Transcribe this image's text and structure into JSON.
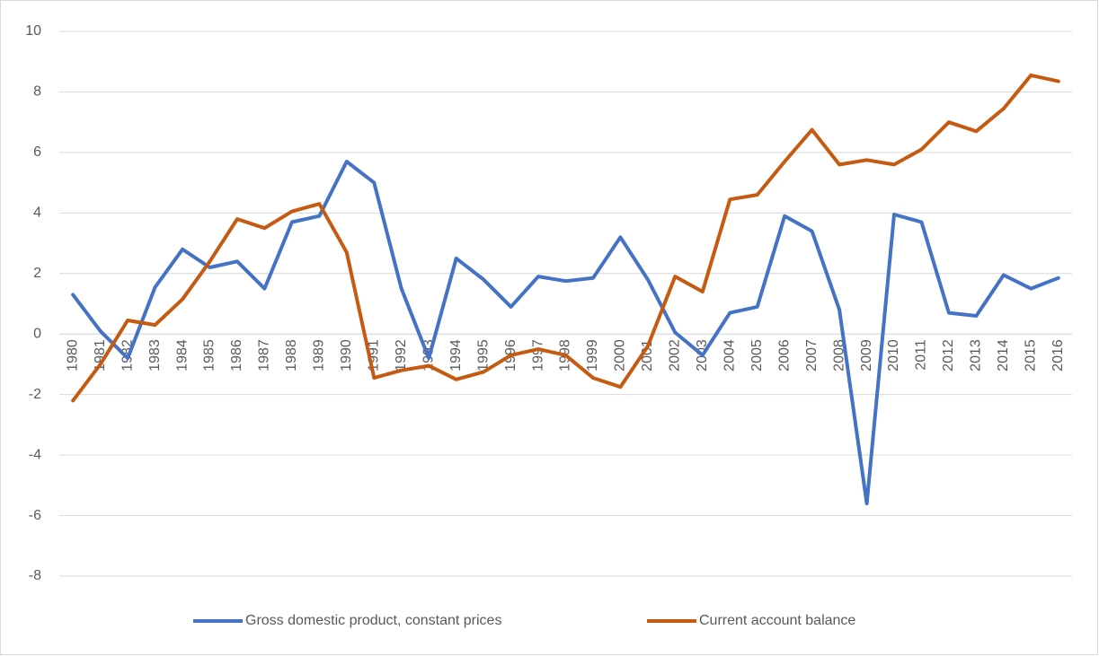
{
  "chart_data": {
    "type": "line",
    "categories": [
      "1980",
      "1981",
      "1982",
      "1983",
      "1984",
      "1985",
      "1986",
      "1987",
      "1988",
      "1989",
      "1990",
      "1991",
      "1992",
      "1993",
      "1994",
      "1995",
      "1996",
      "1997",
      "1998",
      "1999",
      "2000",
      "2001",
      "2002",
      "2003",
      "2004",
      "2005",
      "2006",
      "2007",
      "2008",
      "2009",
      "2010",
      "2011",
      "2012",
      "2013",
      "2014",
      "2015",
      "2016"
    ],
    "series": [
      {
        "name": "Gross domestic product, constant prices",
        "color": "#4472c4",
        "values": [
          1.3,
          0.1,
          -0.8,
          1.55,
          2.8,
          2.2,
          2.4,
          1.5,
          3.7,
          3.9,
          5.7,
          5.0,
          1.5,
          -0.8,
          2.5,
          1.8,
          0.9,
          1.9,
          1.75,
          1.85,
          3.2,
          1.8,
          0.05,
          -0.7,
          0.7,
          0.9,
          3.9,
          3.4,
          0.8,
          -5.6,
          3.95,
          3.7,
          0.7,
          0.6,
          1.95,
          1.5,
          1.85
        ]
      },
      {
        "name": "Current account balance",
        "color": "#c55a11",
        "values": [
          -2.2,
          -1.0,
          0.45,
          0.3,
          1.15,
          2.4,
          3.8,
          3.5,
          4.05,
          4.3,
          2.7,
          -1.45,
          -1.2,
          -1.05,
          -1.5,
          -1.25,
          -0.7,
          -0.5,
          -0.7,
          -1.45,
          -1.75,
          -0.4,
          1.9,
          1.4,
          4.45,
          4.6,
          5.7,
          6.75,
          5.6,
          5.75,
          5.6,
          6.1,
          7.0,
          6.7,
          7.45,
          8.55,
          8.35
        ]
      }
    ],
    "ylim": [
      -8,
      10
    ],
    "yticks": [
      -8,
      -6,
      -4,
      -2,
      0,
      2,
      4,
      6,
      8,
      10
    ],
    "grid": true,
    "legend": "bottom"
  }
}
